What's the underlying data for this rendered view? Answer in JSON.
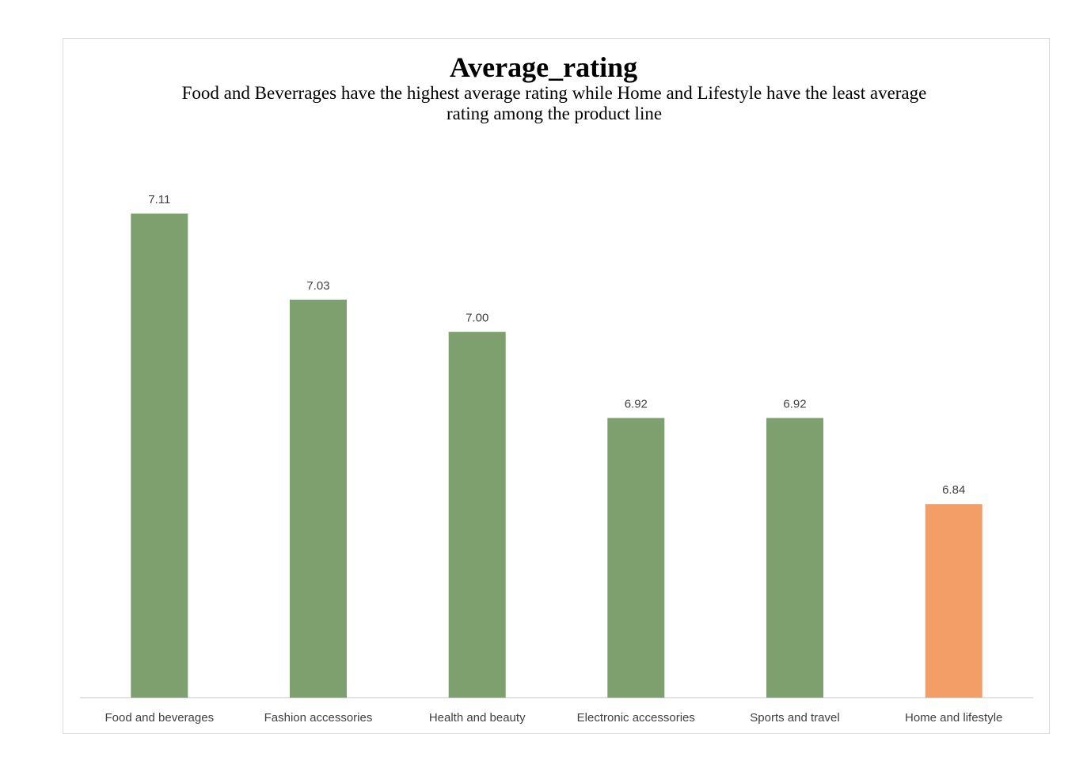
{
  "chart_data": {
    "type": "bar",
    "title": "Average_rating",
    "subtitle": "Food and Beverrages have the highest average rating while Home and Lifestyle have the least average rating among the product line",
    "categories": [
      "Food and beverages",
      "Fashion accessories",
      "Health and beauty",
      "Electronic accessories",
      "Sports and travel",
      "Home and lifestyle"
    ],
    "values": [
      7.11,
      7.03,
      7.0,
      6.92,
      6.92,
      6.84
    ],
    "value_labels": [
      "7.11",
      "7.03",
      "7.00",
      "6.92",
      "6.92",
      "6.84"
    ],
    "bar_colors": [
      "#7ea06e",
      "#7ea06e",
      "#7ea06e",
      "#7ea06e",
      "#7ea06e",
      "#f39e67"
    ],
    "xlabel": "",
    "ylabel": "",
    "ylim": [
      6.66,
      7.11
    ],
    "grid": false,
    "legend": "none"
  }
}
